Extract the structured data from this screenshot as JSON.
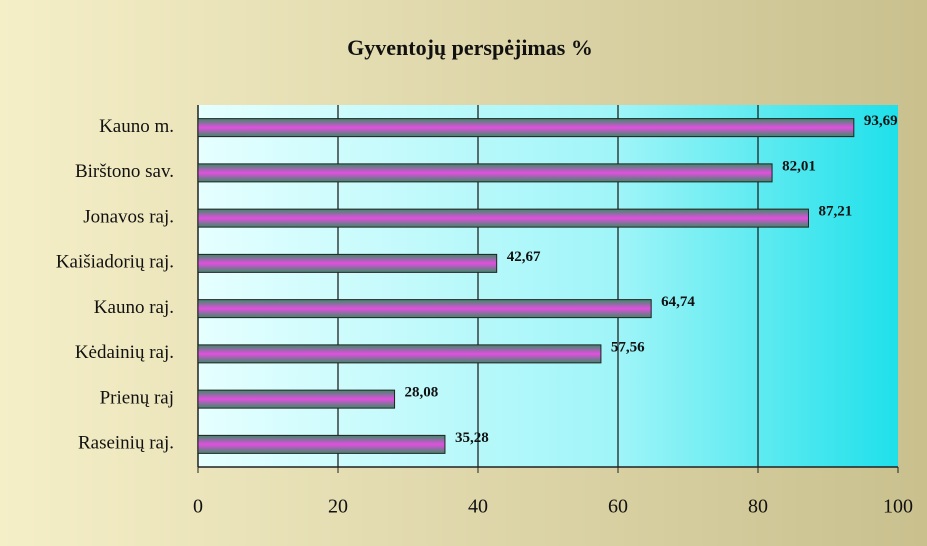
{
  "chart_data": {
    "type": "barh",
    "title": "Gyventojų perspėjimas %",
    "categories": [
      "Kauno m.",
      "Birštono sav.",
      "Jonavos raj.",
      "Kaišiadorių raj.",
      "Kauno raj.",
      "Kėdainių raj.",
      "Prienų raj",
      "Raseinių raj."
    ],
    "values": [
      93.69,
      82.01,
      87.21,
      42.67,
      64.74,
      57.56,
      28.08,
      35.28
    ],
    "value_labels": [
      "93,69",
      "82,01",
      "87,21",
      "42,67",
      "64,74",
      "57,56",
      "28,08",
      "35,28"
    ],
    "xlim": [
      0,
      100
    ],
    "xticks": [
      0,
      20,
      40,
      60,
      80,
      100
    ],
    "grid": true
  }
}
